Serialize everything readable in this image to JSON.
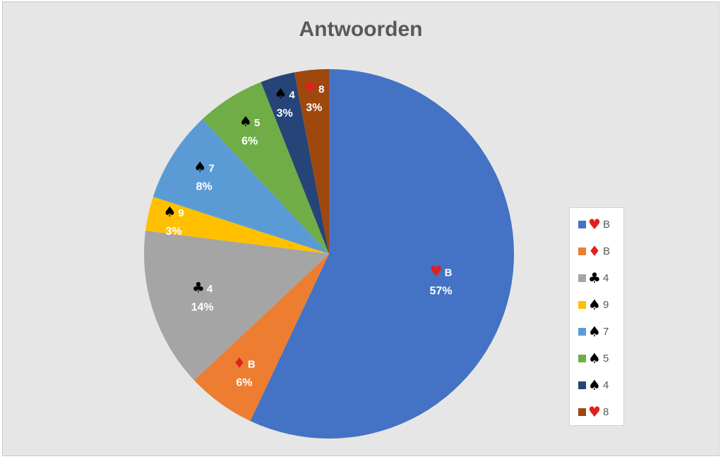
{
  "chart_data": {
    "type": "pie",
    "title": "Antwoorden",
    "legend_position": "right",
    "slices": [
      {
        "suit": "hearts",
        "rank": "B",
        "value": 57,
        "label": "57%",
        "color": "#4472C4",
        "suit_color": "#E02020"
      },
      {
        "suit": "diamonds",
        "rank": "B",
        "value": 6,
        "label": "6%",
        "color": "#ED7D31",
        "suit_color": "#E02020"
      },
      {
        "suit": "clubs",
        "rank": "4",
        "value": 14,
        "label": "14%",
        "color": "#A5A5A5",
        "suit_color": "#000000"
      },
      {
        "suit": "spades",
        "rank": "9",
        "value": 3,
        "label": "3%",
        "color": "#FFC000",
        "suit_color": "#000000"
      },
      {
        "suit": "spades",
        "rank": "7",
        "value": 8,
        "label": "8%",
        "color": "#5B9BD5",
        "suit_color": "#000000"
      },
      {
        "suit": "spades",
        "rank": "5",
        "value": 6,
        "label": "6%",
        "color": "#70AD47",
        "suit_color": "#000000"
      },
      {
        "suit": "spades",
        "rank": "4",
        "value": 3,
        "label": "3%",
        "color": "#264478",
        "suit_color": "#000000"
      },
      {
        "suit": "hearts",
        "rank": "8",
        "value": 3,
        "label": "3%",
        "color": "#9E480E",
        "suit_color": "#E02020"
      }
    ]
  }
}
